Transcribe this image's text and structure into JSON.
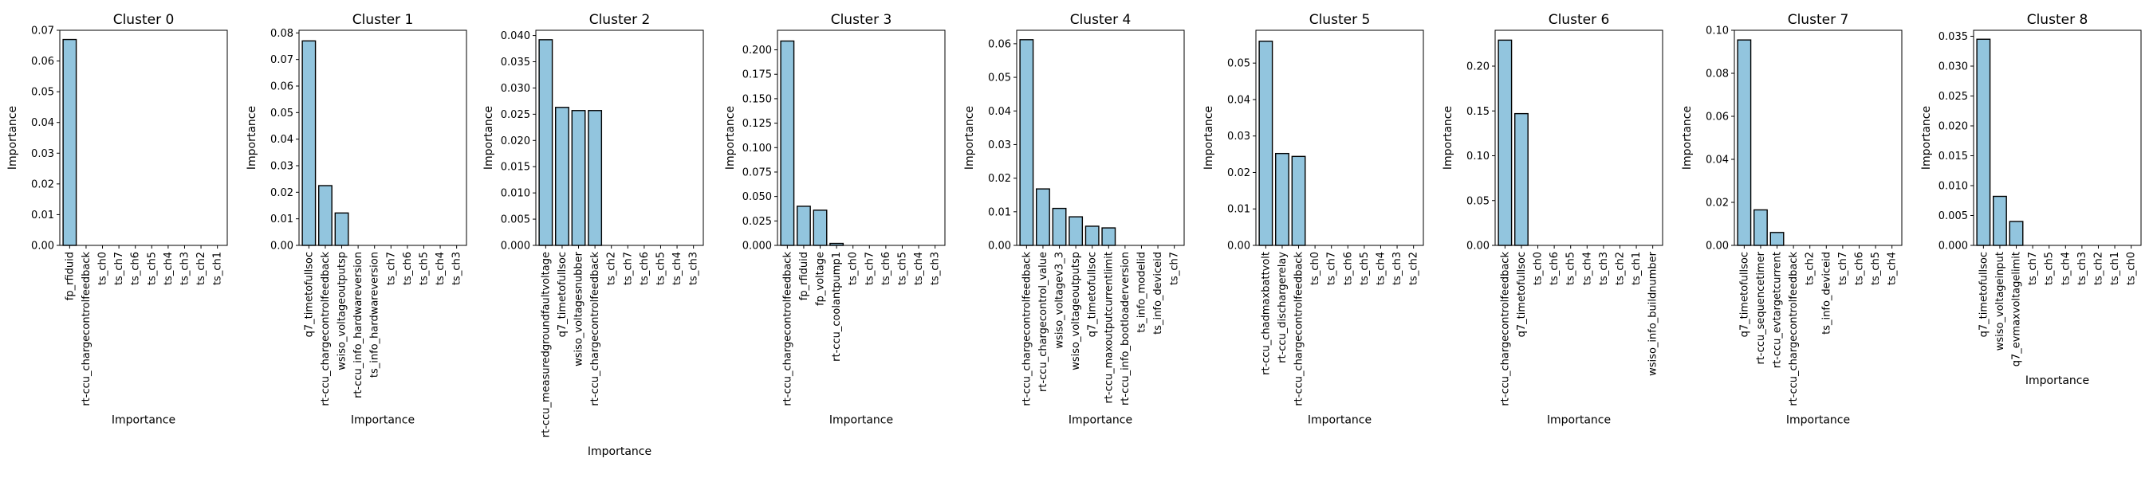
{
  "figure": {
    "bar_color": "#92c5de",
    "edge_color": "#000000"
  },
  "chart_data": [
    {
      "type": "bar",
      "title": "Cluster 0",
      "xlabel": "Importance",
      "ylabel": "Importance",
      "categories": [
        "fp_rfiduid",
        "rt-ccu_chargecontrolfeedback",
        "ts_ch0",
        "ts_ch7",
        "ts_ch6",
        "ts_ch5",
        "ts_ch4",
        "ts_ch3",
        "ts_ch2",
        "ts_ch1"
      ],
      "values": [
        0.067,
        0,
        0,
        0,
        0,
        0,
        0,
        0,
        0,
        0
      ],
      "ylim": [
        0,
        0.07
      ],
      "yticks": [
        0.0,
        0.01,
        0.02,
        0.03,
        0.04,
        0.05,
        0.06,
        0.07
      ],
      "ytick_labels": [
        "0.00",
        "0.01",
        "0.02",
        "0.03",
        "0.04",
        "0.05",
        "0.06",
        "0.07"
      ]
    },
    {
      "type": "bar",
      "title": "Cluster 1",
      "xlabel": "Importance",
      "ylabel": "Importance",
      "categories": [
        "q7_timetofullsoc",
        "rt-ccu_chargecontrolfeedback",
        "wsiso_voltageoutputsp",
        "rt-ccu_info_hardwareversion",
        "ts_info_hardwareversion",
        "ts_ch7",
        "ts_ch6",
        "ts_ch5",
        "ts_ch4",
        "ts_ch3"
      ],
      "values": [
        0.077,
        0.0225,
        0.0122,
        0,
        0,
        0,
        0,
        0,
        0,
        0
      ],
      "ylim": [
        0,
        0.081
      ],
      "yticks": [
        0.0,
        0.01,
        0.02,
        0.03,
        0.04,
        0.05,
        0.06,
        0.07,
        0.08
      ],
      "ytick_labels": [
        "0.00",
        "0.01",
        "0.02",
        "0.03",
        "0.04",
        "0.05",
        "0.06",
        "0.07",
        "0.08"
      ]
    },
    {
      "type": "bar",
      "title": "Cluster 2",
      "xlabel": "Importance",
      "ylabel": "Importance",
      "categories": [
        "rt-ccu_measuredgroundfaultvoltage",
        "q7_timetofullsoc",
        "wsiso_voltagesnubber",
        "rt-ccu_chargecontrolfeedback",
        "ts_ch2",
        "ts_ch7",
        "ts_ch6",
        "ts_ch5",
        "ts_ch4",
        "ts_ch3"
      ],
      "values": [
        0.0392,
        0.0263,
        0.0257,
        0.0257,
        0,
        0,
        0,
        0,
        0,
        0
      ],
      "ylim": [
        0,
        0.041
      ],
      "yticks": [
        0.0,
        0.005,
        0.01,
        0.015,
        0.02,
        0.025,
        0.03,
        0.035,
        0.04
      ],
      "ytick_labels": [
        "0.000",
        "0.005",
        "0.010",
        "0.015",
        "0.020",
        "0.025",
        "0.030",
        "0.035",
        "0.040"
      ]
    },
    {
      "type": "bar",
      "title": "Cluster 3",
      "xlabel": "Importance",
      "ylabel": "Importance",
      "categories": [
        "rt-ccu_chargecontrolfeedback",
        "fp_rfiduid",
        "fp_voltage",
        "rt-ccu_coolantpump1",
        "ts_ch0",
        "ts_ch7",
        "ts_ch6",
        "ts_ch5",
        "ts_ch4",
        "ts_ch3"
      ],
      "values": [
        0.209,
        0.04,
        0.036,
        0.002,
        0,
        0,
        0,
        0,
        0,
        0
      ],
      "ylim": [
        0,
        0.22
      ],
      "yticks": [
        0.0,
        0.025,
        0.05,
        0.075,
        0.1,
        0.125,
        0.15,
        0.175,
        0.2
      ],
      "ytick_labels": [
        "0.000",
        "0.025",
        "0.050",
        "0.075",
        "0.100",
        "0.125",
        "0.150",
        "0.175",
        "0.200"
      ]
    },
    {
      "type": "bar",
      "title": "Cluster 4",
      "xlabel": "Importance",
      "ylabel": "Importance",
      "categories": [
        "rt-ccu_chargecontrolfeedback",
        "rt-ccu_chargecontrol_value",
        "wsiso_voltagev3_3",
        "wsiso_voltageoutputsp",
        "q7_timetofullsoc",
        "rt-ccu_maxoutputcurrentlimit",
        "rt-ccu_info_bootloaderversion",
        "ts_info_modelid",
        "ts_info_deviceid",
        "ts_ch7"
      ],
      "values": [
        0.0612,
        0.0168,
        0.011,
        0.0085,
        0.0057,
        0.0052,
        0,
        0,
        0,
        0
      ],
      "ylim": [
        0,
        0.064
      ],
      "yticks": [
        0.0,
        0.01,
        0.02,
        0.03,
        0.04,
        0.05,
        0.06
      ],
      "ytick_labels": [
        "0.00",
        "0.01",
        "0.02",
        "0.03",
        "0.04",
        "0.05",
        "0.06"
      ]
    },
    {
      "type": "bar",
      "title": "Cluster 5",
      "xlabel": "Importance",
      "ylabel": "Importance",
      "categories": [
        "rt-ccu_chadmaxbattvolt",
        "rt-ccu_dischargerelay",
        "rt-ccu_chargecontrolfeedback",
        "ts_ch0",
        "ts_ch7",
        "ts_ch6",
        "ts_ch5",
        "ts_ch4",
        "ts_ch3",
        "ts_ch2"
      ],
      "values": [
        0.056,
        0.0252,
        0.0244,
        0,
        0,
        0,
        0,
        0,
        0,
        0
      ],
      "ylim": [
        0,
        0.059
      ],
      "yticks": [
        0.0,
        0.01,
        0.02,
        0.03,
        0.04,
        0.05
      ],
      "ytick_labels": [
        "0.00",
        "0.01",
        "0.02",
        "0.03",
        "0.04",
        "0.05"
      ]
    },
    {
      "type": "bar",
      "title": "Cluster 6",
      "xlabel": "Importance",
      "ylabel": "Importance",
      "categories": [
        "rt-ccu_chargecontrolfeedback",
        "q7_timetofullsoc",
        "ts_ch0",
        "ts_ch6",
        "ts_ch5",
        "ts_ch4",
        "ts_ch3",
        "ts_ch2",
        "ts_ch1",
        "wsiso_info_buildnumber"
      ],
      "values": [
        0.229,
        0.147,
        0,
        0,
        0,
        0,
        0,
        0,
        0,
        0
      ],
      "ylim": [
        0,
        0.24
      ],
      "yticks": [
        0.0,
        0.05,
        0.1,
        0.15,
        0.2
      ],
      "ytick_labels": [
        "0.00",
        "0.05",
        "0.10",
        "0.15",
        "0.20"
      ]
    },
    {
      "type": "bar",
      "title": "Cluster 7",
      "xlabel": "Importance",
      "ylabel": "Importance",
      "categories": [
        "q7_timetofullsoc",
        "rt-ccu_sequencetimer",
        "rt-ccu_evtargetcurrent",
        "rt-ccu_chargecontrolfeedback",
        "ts_ch2",
        "ts_info_deviceid",
        "ts_ch7",
        "ts_ch6",
        "ts_ch5",
        "ts_ch4"
      ],
      "values": [
        0.0955,
        0.0165,
        0.006,
        0,
        0,
        0,
        0,
        0,
        0,
        0
      ],
      "ylim": [
        0,
        0.1
      ],
      "yticks": [
        0.0,
        0.02,
        0.04,
        0.06,
        0.08,
        0.1
      ],
      "ytick_labels": [
        "0.00",
        "0.02",
        "0.04",
        "0.06",
        "0.08",
        "0.10"
      ]
    },
    {
      "type": "bar",
      "title": "Cluster 8",
      "xlabel": "Importance",
      "ylabel": "Importance",
      "categories": [
        "q7_timetofullsoc",
        "wsiso_voltageinput",
        "q7_evmaxvoltagelimit",
        "ts_ch7",
        "ts_ch5",
        "ts_ch4",
        "ts_ch3",
        "ts_ch2",
        "ts_ch1",
        "ts_ch0"
      ],
      "values": [
        0.0345,
        0.0082,
        0.004,
        0,
        0,
        0,
        0,
        0,
        0,
        0
      ],
      "ylim": [
        0,
        0.036
      ],
      "yticks": [
        0.0,
        0.005,
        0.01,
        0.015,
        0.02,
        0.025,
        0.03,
        0.035
      ],
      "ytick_labels": [
        "0.000",
        "0.005",
        "0.010",
        "0.015",
        "0.020",
        "0.025",
        "0.030",
        "0.035"
      ]
    }
  ]
}
